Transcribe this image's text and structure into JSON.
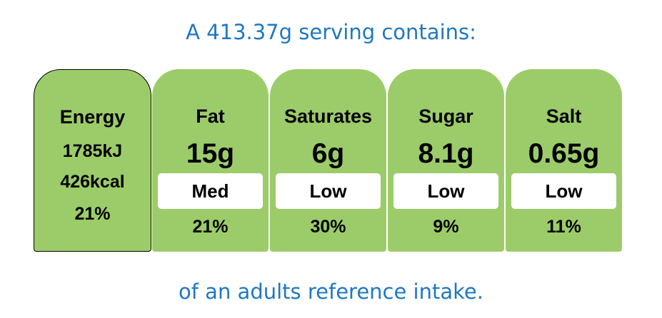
{
  "header": "A 413.37g serving contains:",
  "energy": {
    "label": "Energy",
    "kj": "1785kJ",
    "kcal": "426kcal",
    "percent": "21%"
  },
  "nutrients": [
    {
      "name": "Fat",
      "amount": "15g",
      "level": "Med",
      "percent": "21%"
    },
    {
      "name": "Saturates",
      "amount": "6g",
      "level": "Low",
      "percent": "30%"
    },
    {
      "name": "Sugar",
      "amount": "8.1g",
      "level": "Low",
      "percent": "9%"
    },
    {
      "name": "Salt",
      "amount": "0.65g",
      "level": "Low",
      "percent": "11%"
    }
  ],
  "footer": "of an adults reference intake."
}
